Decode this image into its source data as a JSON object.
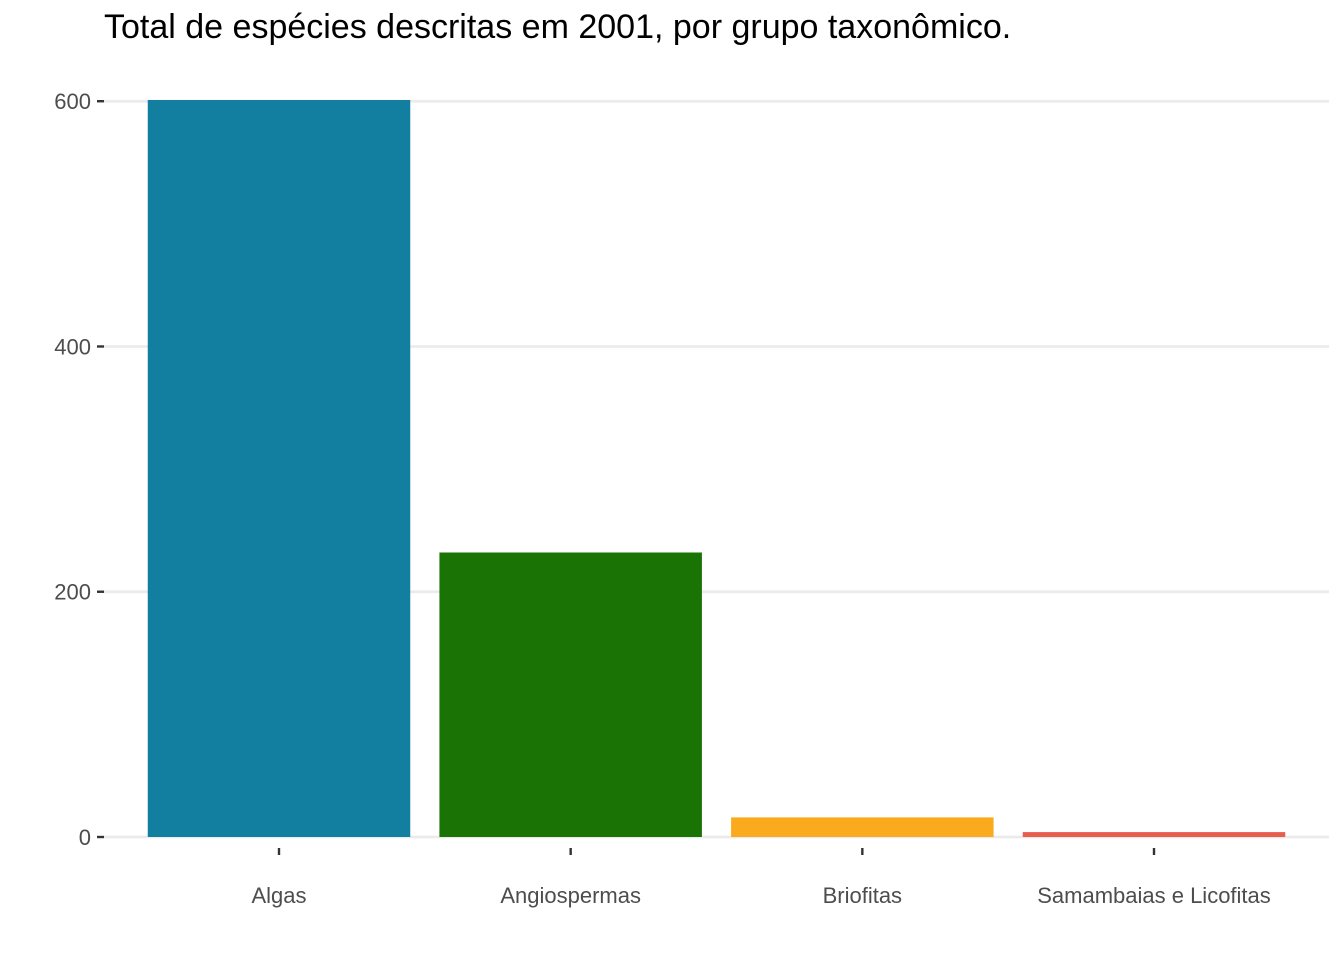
{
  "chart_data": {
    "type": "bar",
    "title": "Total de espécies descritas em 2001, por grupo taxonômico.",
    "xlabel": "",
    "ylabel": "",
    "categories": [
      "Algas",
      "Angiospermas",
      "Briofitas",
      "Samambaias e Licofitas"
    ],
    "values": [
      601,
      232,
      16,
      4
    ],
    "colors": [
      "#137fa0",
      "#1a7305",
      "#f9ab1d",
      "#e85d4b"
    ],
    "ylim": [
      0,
      601
    ],
    "yticks": [
      0,
      200,
      400,
      600
    ],
    "grid": "horizontal",
    "legend": "none"
  }
}
